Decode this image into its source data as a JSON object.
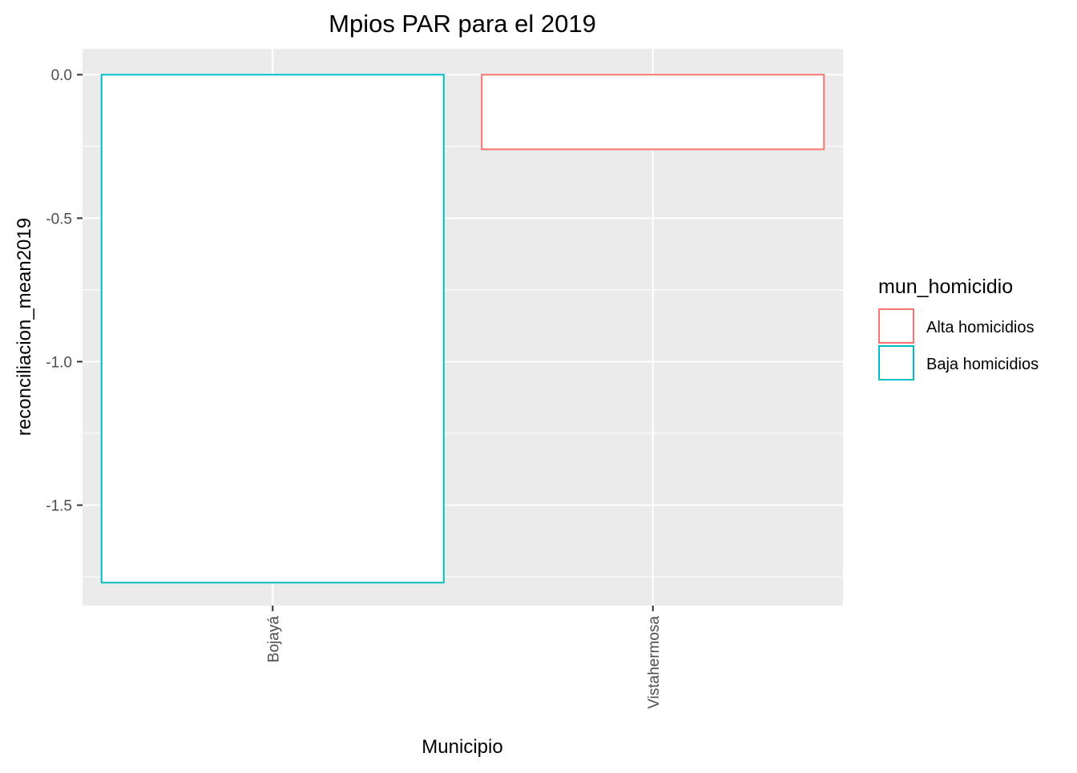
{
  "chart_data": {
    "type": "bar",
    "title": "Mpios PAR para el 2019",
    "xlabel": "Municipio",
    "ylabel": "reconciliacion_mean2019",
    "categories": [
      "Bojayá",
      "Vistahermosa"
    ],
    "values": [
      -1.77,
      -0.26
    ],
    "groups": [
      "Baja homicidios",
      "Alta homicidios"
    ],
    "ylim": [
      -1.85,
      0.09
    ],
    "yticks": [
      0.0,
      -0.5,
      -1.0,
      -1.5
    ],
    "ytick_labels": [
      "0.0",
      "-0.5",
      "-1.0",
      "-1.5"
    ],
    "grid": true,
    "fill": "#FFFFFF",
    "legend": {
      "title": "mun_homicidio",
      "placement": "right",
      "entries": [
        {
          "label": "Alta homicidios",
          "color": "#F8766D"
        },
        {
          "label": "Baja homicidios",
          "color": "#00BFC4"
        }
      ]
    }
  }
}
